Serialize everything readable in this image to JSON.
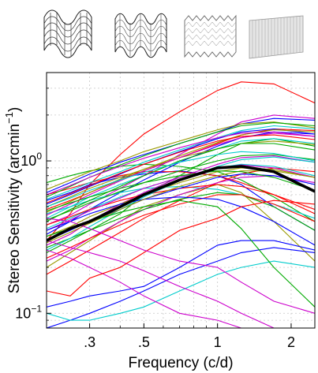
{
  "chart_data": {
    "type": "line",
    "xlabel": "Frequency (c/d)",
    "ylabel_main": "Stereo Sensitivity (arcmin",
    "ylabel_sup": "−1",
    "ylabel_close": ")",
    "x_scale": "log",
    "y_scale": "log",
    "xlim": [
      0.2,
      2.5
    ],
    "ylim": [
      0.08,
      3.8
    ],
    "grid": true,
    "x_ticks": [
      {
        "value": 0.3,
        "label": ".3"
      },
      {
        "value": 0.5,
        "label": ".5"
      },
      {
        "value": 1,
        "label": "1"
      },
      {
        "value": 2,
        "label": "2"
      }
    ],
    "y_ticks": [
      {
        "value": 0.1,
        "base": "10",
        "exp": "−1"
      },
      {
        "value": 1,
        "base": "10",
        "exp": "0"
      }
    ],
    "x": [
      0.2,
      0.25,
      0.3,
      0.4,
      0.5,
      0.7,
      1.0,
      1.25,
      1.7,
      2.5
    ],
    "mean_series": {
      "color": "#000000",
      "values": [
        0.3,
        0.36,
        0.4,
        0.5,
        0.6,
        0.75,
        0.9,
        0.92,
        0.85,
        0.63
      ]
    },
    "series": [
      {
        "color": "#ff0000",
        "values": [
          0.3,
          0.45,
          0.7,
          1.1,
          1.5,
          2.1,
          2.9,
          3.3,
          3.2,
          2.4
        ]
      },
      {
        "color": "#00aa00",
        "values": [
          0.25,
          0.3,
          0.35,
          0.45,
          0.6,
          0.8,
          1.1,
          1.3,
          1.4,
          1.25
        ]
      },
      {
        "color": "#0000ff",
        "values": [
          0.55,
          0.62,
          0.7,
          0.78,
          0.82,
          0.86,
          0.8,
          0.7,
          0.5,
          0.35
        ]
      },
      {
        "color": "#00cccc",
        "values": [
          0.42,
          0.5,
          0.58,
          0.7,
          0.8,
          1.0,
          1.2,
          1.35,
          1.4,
          1.3
        ]
      },
      {
        "color": "#cc00cc",
        "values": [
          0.38,
          0.44,
          0.52,
          0.66,
          0.8,
          1.1,
          1.5,
          1.8,
          2.0,
          1.9
        ]
      },
      {
        "color": "#999900",
        "values": [
          0.2,
          0.25,
          0.3,
          0.4,
          0.5,
          0.6,
          0.7,
          0.62,
          0.4,
          0.22
        ]
      },
      {
        "color": "#ff0000",
        "values": [
          0.6,
          0.66,
          0.72,
          0.8,
          0.85,
          0.85,
          0.8,
          0.72,
          0.6,
          0.45
        ]
      },
      {
        "color": "#00aa00",
        "values": [
          0.72,
          0.8,
          0.86,
          0.92,
          0.95,
          0.92,
          0.85,
          0.75,
          0.58,
          0.4
        ]
      },
      {
        "color": "#0000ff",
        "values": [
          0.33,
          0.4,
          0.48,
          0.62,
          0.75,
          0.98,
          1.25,
          1.42,
          1.55,
          1.5
        ]
      },
      {
        "color": "#00cccc",
        "values": [
          0.45,
          0.5,
          0.55,
          0.62,
          0.66,
          0.68,
          0.65,
          0.6,
          0.52,
          0.42
        ]
      },
      {
        "color": "#cc00cc",
        "values": [
          0.28,
          0.33,
          0.4,
          0.52,
          0.62,
          0.78,
          0.95,
          1.05,
          1.08,
          0.98
        ]
      },
      {
        "color": "#999900",
        "values": [
          0.5,
          0.58,
          0.66,
          0.78,
          0.88,
          1.05,
          1.2,
          1.3,
          1.35,
          1.28
        ]
      },
      {
        "color": "#ff0000",
        "values": [
          0.18,
          0.22,
          0.26,
          0.34,
          0.42,
          0.55,
          0.72,
          0.82,
          0.9,
          0.85
        ]
      },
      {
        "color": "#00aa00",
        "values": [
          0.4,
          0.48,
          0.55,
          0.68,
          0.8,
          1.0,
          1.2,
          1.3,
          1.3,
          1.18
        ]
      },
      {
        "color": "#0000ff",
        "values": [
          0.62,
          0.72,
          0.82,
          0.98,
          1.1,
          1.3,
          1.55,
          1.75,
          1.9,
          1.85
        ]
      },
      {
        "color": "#00cccc",
        "values": [
          0.36,
          0.42,
          0.48,
          0.58,
          0.66,
          0.78,
          0.9,
          0.95,
          0.92,
          0.8
        ]
      },
      {
        "color": "#cc00cc",
        "values": [
          0.22,
          0.26,
          0.31,
          0.4,
          0.48,
          0.6,
          0.72,
          0.78,
          0.8,
          0.72
        ]
      },
      {
        "color": "#999900",
        "values": [
          0.65,
          0.75,
          0.85,
          1.0,
          1.15,
          1.35,
          1.6,
          1.75,
          1.8,
          1.65
        ]
      },
      {
        "color": "#ff0000",
        "values": [
          0.48,
          0.55,
          0.62,
          0.75,
          0.86,
          1.05,
          1.3,
          1.48,
          1.62,
          1.58
        ]
      },
      {
        "color": "#00aa00",
        "values": [
          0.27,
          0.31,
          0.35,
          0.42,
          0.48,
          0.56,
          0.62,
          0.6,
          0.5,
          0.35
        ]
      },
      {
        "color": "#0000ff",
        "values": [
          0.52,
          0.6,
          0.68,
          0.82,
          0.95,
          1.15,
          1.4,
          1.55,
          1.62,
          1.5
        ]
      },
      {
        "color": "#00cccc",
        "values": [
          0.56,
          0.64,
          0.72,
          0.85,
          0.98,
          1.18,
          1.42,
          1.58,
          1.7,
          1.62
        ]
      },
      {
        "color": "#cc00cc",
        "values": [
          0.44,
          0.52,
          0.6,
          0.74,
          0.86,
          1.05,
          1.28,
          1.42,
          1.52,
          1.45
        ]
      },
      {
        "color": "#999900",
        "values": [
          0.32,
          0.37,
          0.43,
          0.52,
          0.6,
          0.72,
          0.85,
          0.9,
          0.88,
          0.78
        ]
      },
      {
        "color": "#ff0000",
        "values": [
          0.38,
          0.43,
          0.48,
          0.55,
          0.6,
          0.66,
          0.7,
          0.68,
          0.6,
          0.48
        ]
      },
      {
        "color": "#00aa00",
        "values": [
          0.58,
          0.68,
          0.78,
          0.94,
          1.08,
          1.3,
          1.55,
          1.7,
          1.78,
          1.7
        ]
      },
      {
        "color": "#0000ff",
        "values": [
          0.3,
          0.35,
          0.4,
          0.48,
          0.56,
          0.66,
          0.78,
          0.82,
          0.8,
          0.7
        ]
      },
      {
        "color": "#00cccc",
        "values": [
          0.26,
          0.31,
          0.37,
          0.48,
          0.58,
          0.74,
          0.92,
          1.02,
          1.06,
          0.98
        ]
      },
      {
        "color": "#cc00cc",
        "values": [
          0.35,
          0.41,
          0.47,
          0.57,
          0.66,
          0.78,
          0.9,
          0.94,
          0.9,
          0.78
        ]
      },
      {
        "color": "#999900",
        "values": [
          0.46,
          0.54,
          0.62,
          0.76,
          0.88,
          1.08,
          1.32,
          1.48,
          1.6,
          1.55
        ]
      },
      {
        "color": "#ff0000",
        "values": [
          0.23,
          0.27,
          0.31,
          0.38,
          0.44,
          0.52,
          0.6,
          0.6,
          0.52,
          0.4
        ]
      },
      {
        "color": "#00aa00",
        "values": [
          0.41,
          0.47,
          0.53,
          0.63,
          0.72,
          0.86,
          1.0,
          1.08,
          1.1,
          1.02
        ]
      },
      {
        "color": "#0000ff",
        "values": [
          0.35,
          0.4,
          0.45,
          0.52,
          0.56,
          0.58,
          0.56,
          0.5,
          0.4,
          0.28
        ]
      },
      {
        "color": "#00cccc",
        "values": [
          0.5,
          0.57,
          0.64,
          0.75,
          0.84,
          0.98,
          1.1,
          1.15,
          1.12,
          1.0
        ]
      },
      {
        "color": "#cc00cc",
        "values": [
          0.6,
          0.69,
          0.78,
          0.92,
          1.04,
          1.22,
          1.42,
          1.52,
          1.55,
          1.45
        ]
      },
      {
        "color": "#999900",
        "values": [
          0.29,
          0.34,
          0.39,
          0.48,
          0.56,
          0.68,
          0.8,
          0.86,
          0.86,
          0.78
        ]
      },
      {
        "color": "#ff0000",
        "values": [
          0.53,
          0.61,
          0.69,
          0.83,
          0.95,
          1.14,
          1.35,
          1.45,
          1.48,
          1.38
        ]
      },
      {
        "color": "#00aa00",
        "values": [
          0.47,
          0.53,
          0.58,
          0.66,
          0.72,
          0.8,
          0.86,
          0.85,
          0.78,
          0.64
        ]
      },
      {
        "color": "#0000ff",
        "values": [
          0.08,
          0.09,
          0.1,
          0.12,
          0.14,
          0.18,
          0.22,
          0.25,
          0.27,
          0.25
        ]
      },
      {
        "color": "#0000ff",
        "values": [
          0.11,
          0.12,
          0.13,
          0.14,
          0.15,
          0.2,
          0.28,
          0.3,
          0.3,
          0.26
        ]
      },
      {
        "color": "#00cccc",
        "values": [
          0.1,
          0.09,
          0.09,
          0.1,
          0.11,
          0.14,
          0.18,
          0.2,
          0.22,
          0.2
        ]
      },
      {
        "color": "#cc00cc",
        "values": [
          0.3,
          0.27,
          0.25,
          0.22,
          0.19,
          0.15,
          0.12,
          0.1,
          0.08,
          0.07
        ]
      },
      {
        "color": "#cc00cc",
        "values": [
          0.26,
          0.23,
          0.2,
          0.16,
          0.13,
          0.1,
          0.09,
          0.08,
          0.07,
          0.07
        ]
      },
      {
        "color": "#ff0000",
        "values": [
          0.14,
          0.13,
          0.17,
          0.2,
          0.25,
          0.35,
          0.42,
          0.5,
          0.55,
          0.52
        ]
      },
      {
        "color": "#00aa00",
        "values": [
          0.32,
          0.36,
          0.4,
          0.46,
          0.5,
          0.55,
          0.5,
          0.36,
          0.2,
          0.11
        ]
      },
      {
        "color": "#cc00cc",
        "values": [
          0.42,
          0.4,
          0.36,
          0.3,
          0.26,
          0.22,
          0.2,
          0.16,
          0.12,
          0.1
        ]
      }
    ]
  }
}
